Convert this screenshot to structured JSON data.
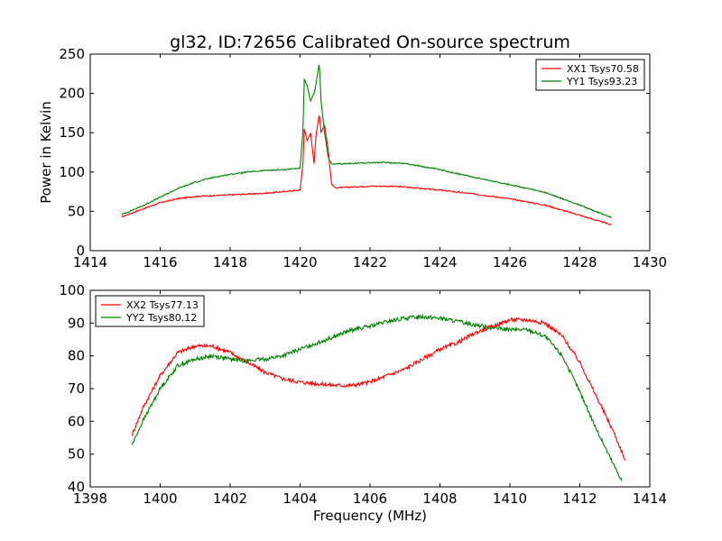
{
  "chart_data": [
    {
      "type": "line",
      "title": "gl32, ID:72656 Calibrated On-source spectrum",
      "xlabel": "",
      "ylabel": "Power in Kelvin",
      "xlim": [
        1414,
        1430
      ],
      "ylim": [
        0,
        250
      ],
      "xticks": [
        "1414",
        "1416",
        "1418",
        "1420",
        "1422",
        "1424",
        "1426",
        "1428",
        "1430"
      ],
      "yticks": [
        "0",
        "50",
        "100",
        "150",
        "200",
        "250"
      ],
      "legend_position": "top-right",
      "series": [
        {
          "name": "XX1 Tsys70.58",
          "color": "#ff0000",
          "x": [
            1414.9,
            1415.5,
            1416.0,
            1416.5,
            1417.0,
            1417.5,
            1418.0,
            1418.5,
            1419.0,
            1419.5,
            1420.0,
            1420.08,
            1420.12,
            1420.2,
            1420.3,
            1420.4,
            1420.45,
            1420.55,
            1420.6,
            1420.7,
            1420.8,
            1420.9,
            1421.0,
            1422.0,
            1422.5,
            1423.0,
            1424.0,
            1425.0,
            1426.0,
            1427.0,
            1428.0,
            1428.9
          ],
          "y": [
            43,
            53,
            61,
            66,
            69,
            70,
            71,
            72,
            73,
            75,
            77,
            110,
            155,
            140,
            150,
            110,
            145,
            175,
            150,
            160,
            130,
            85,
            80,
            82,
            82,
            81,
            77,
            72,
            66,
            58,
            45,
            33
          ]
        },
        {
          "name": "YY1 Tsys93.23",
          "color": "#008000",
          "x": [
            1414.9,
            1415.5,
            1416.0,
            1416.5,
            1417.0,
            1417.5,
            1418.0,
            1418.5,
            1419.0,
            1419.5,
            1420.0,
            1420.08,
            1420.12,
            1420.2,
            1420.3,
            1420.4,
            1420.45,
            1420.55,
            1420.6,
            1420.7,
            1420.8,
            1420.9,
            1421.0,
            1422.0,
            1422.5,
            1423.0,
            1424.0,
            1425.0,
            1426.0,
            1427.0,
            1428.0,
            1428.9
          ],
          "y": [
            46,
            57,
            68,
            79,
            87,
            93,
            97,
            100,
            102,
            103,
            105,
            150,
            218,
            210,
            190,
            200,
            210,
            240,
            190,
            150,
            120,
            110,
            110,
            112,
            112,
            111,
            103,
            93,
            84,
            74,
            58,
            42
          ]
        }
      ]
    },
    {
      "type": "line",
      "title": "",
      "xlabel": "Frequency (MHz)",
      "ylabel": "",
      "xlim": [
        1398,
        1414
      ],
      "ylim": [
        40,
        100
      ],
      "xticks": [
        "1398",
        "1400",
        "1402",
        "1404",
        "1406",
        "1408",
        "1410",
        "1412",
        "1414"
      ],
      "yticks": [
        "40",
        "50",
        "60",
        "70",
        "80",
        "90",
        "100"
      ],
      "legend_position": "top-left",
      "series": [
        {
          "name": "XX2 Tsys77.13",
          "color": "#ff0000",
          "x": [
            1399.2,
            1399.5,
            1400.0,
            1400.5,
            1401.0,
            1401.5,
            1402.0,
            1402.5,
            1403.0,
            1403.5,
            1404.0,
            1404.5,
            1405.0,
            1405.5,
            1406.0,
            1406.5,
            1407.0,
            1407.5,
            1408.0,
            1408.5,
            1409.0,
            1409.5,
            1410.0,
            1410.5,
            1411.0,
            1411.5,
            1412.0,
            1412.5,
            1413.0,
            1413.3
          ],
          "y": [
            56,
            64,
            74,
            81,
            83,
            83,
            81,
            78,
            75,
            73,
            72,
            71.5,
            71,
            71,
            72,
            74,
            76,
            79,
            82,
            84,
            87,
            89,
            91,
            91,
            90,
            86,
            78,
            67,
            56,
            48
          ]
        },
        {
          "name": "YY2 Tsys80.12",
          "color": "#008000",
          "x": [
            1399.2,
            1399.5,
            1400.0,
            1400.5,
            1401.0,
            1401.5,
            1402.0,
            1402.5,
            1403.0,
            1403.5,
            1404.0,
            1404.5,
            1405.0,
            1405.5,
            1406.0,
            1406.5,
            1407.0,
            1407.5,
            1408.0,
            1408.5,
            1409.0,
            1409.5,
            1410.0,
            1410.5,
            1411.0,
            1411.5,
            1412.0,
            1412.5,
            1413.0,
            1413.2
          ],
          "y": [
            53,
            60,
            70,
            77,
            79,
            80,
            79,
            78.5,
            79,
            80,
            82,
            84,
            86,
            88,
            89,
            90.5,
            91.5,
            92,
            91.5,
            90.5,
            89.5,
            88.5,
            88,
            88,
            86,
            80,
            69,
            57,
            46,
            42
          ]
        }
      ]
    }
  ]
}
